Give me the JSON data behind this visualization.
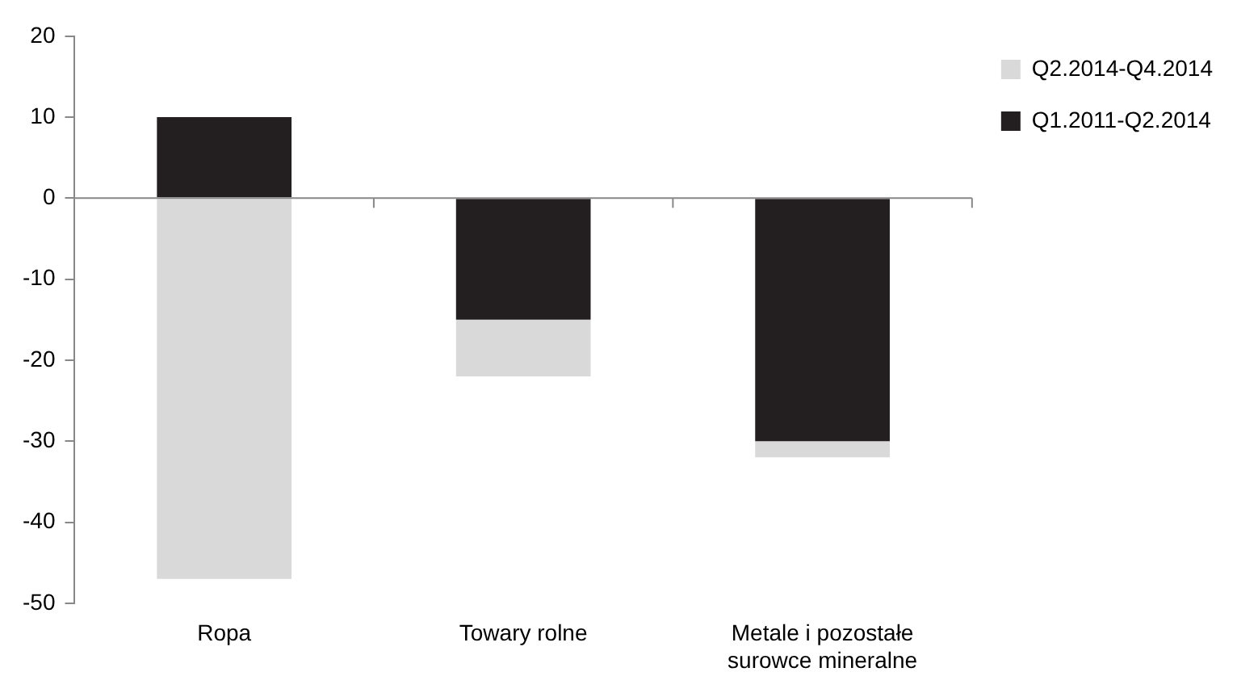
{
  "chart_data": {
    "type": "bar",
    "stacked": true,
    "categories": [
      "Ropa",
      "Towary rolne",
      "Metale i pozostałe surowce mineralne"
    ],
    "series": [
      {
        "name": "Q1.2011-Q2.2014",
        "color": "#231f20",
        "values": [
          10,
          -15,
          -30
        ]
      },
      {
        "name": "Q2.2014-Q4.2014",
        "color": "#d9d9d9",
        "values": [
          -47,
          -7,
          -2
        ]
      }
    ],
    "ylim": [
      -50,
      20
    ],
    "yticks": [
      -50,
      -40,
      -30,
      -20,
      -10,
      0,
      10,
      20
    ],
    "ref_lines": [
      {
        "axis": "y",
        "value": 0,
        "color": "#888888"
      }
    ],
    "grid": false,
    "legend": "top right"
  }
}
